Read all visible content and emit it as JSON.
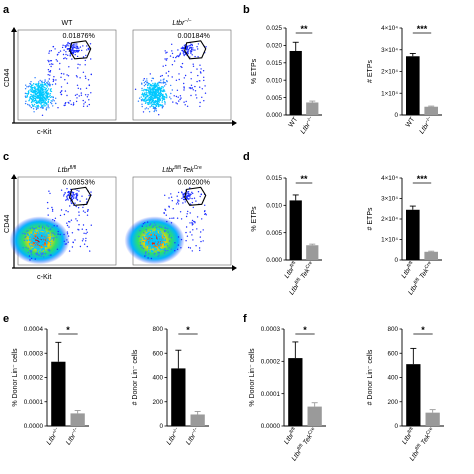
{
  "panel_letters": {
    "a": "a",
    "b": "b",
    "c": "c",
    "d": "d",
    "e": "e",
    "f": "f"
  },
  "flow_panels": [
    {
      "panel": "a",
      "x_axis_label": "c-Kit",
      "y_axis_label": "CD44",
      "plots": [
        {
          "title_main": "WT",
          "title_sup": "",
          "title_main2": "",
          "title_sup2": "",
          "gate_value": "0.01876%",
          "density": "sparse"
        },
        {
          "title_main": "Ltbr",
          "title_sup": "−/−",
          "title_main2": "",
          "title_sup2": "",
          "gate_value": "0.00184%",
          "density": "sparse"
        }
      ]
    },
    {
      "panel": "c",
      "x_axis_label": "c-Kit",
      "y_axis_label": "CD44",
      "plots": [
        {
          "title_main": "Ltbr",
          "title_sup": "fl/fl",
          "title_main2": "",
          "title_sup2": "",
          "gate_value": "0.00853%",
          "density": "dense"
        },
        {
          "title_main": "Ltbr",
          "title_sup": "fl/fl",
          "title_main2": " Tek",
          "title_sup2": "Cre",
          "gate_value": "0.00200%",
          "density": "dense"
        }
      ]
    }
  ],
  "chart_data": [
    {
      "panel": "b",
      "type": "bar",
      "ylabel": "% ETPs",
      "ylim": [
        0,
        0.025
      ],
      "yticks": [
        "0.000",
        "0.005",
        "0.010",
        "0.015",
        "0.020",
        "0.025"
      ],
      "categories": [
        {
          "main": "WT",
          "sup": ""
        },
        {
          "main": "Ltbr",
          "sup": "−/−"
        }
      ],
      "values": [
        0.0184,
        0.0036
      ],
      "errors": [
        0.0025,
        0.0004
      ],
      "bar_colors": [
        "#000000",
        "#9a9a9a"
      ],
      "significance": "**"
    },
    {
      "panel": "b",
      "type": "bar",
      "ylabel": "# ETPs",
      "ylim": [
        0,
        40000
      ],
      "yticks": [
        "0",
        "1×10⁴",
        "2×10⁴",
        "3×10⁴",
        "4×10⁴"
      ],
      "categories": [
        {
          "main": "WT",
          "sup": ""
        },
        {
          "main": "Ltbr",
          "sup": "−/−"
        }
      ],
      "values": [
        27000,
        3800
      ],
      "errors": [
        1300,
        300
      ],
      "bar_colors": [
        "#000000",
        "#9a9a9a"
      ],
      "significance": "***"
    },
    {
      "panel": "d",
      "type": "bar",
      "ylabel": "% ETPs",
      "ylim": [
        0,
        0.015
      ],
      "yticks": [
        "0.000",
        "0.005",
        "0.010",
        "0.015"
      ],
      "categories": [
        {
          "main": "Ltbr",
          "sup": "fl/fl"
        },
        {
          "main": "Ltbr",
          "sup": "fl/fl",
          "main2": " Tek",
          "sup2": "Cre"
        }
      ],
      "values": [
        0.0109,
        0.0027
      ],
      "errors": [
        0.001,
        0.0002
      ],
      "bar_colors": [
        "#000000",
        "#9a9a9a"
      ],
      "significance": "**"
    },
    {
      "panel": "d",
      "type": "bar",
      "ylabel": "# ETPs",
      "ylim": [
        0,
        40000
      ],
      "yticks": [
        "0",
        "1×10⁴",
        "2×10⁴",
        "3×10⁴",
        "4×10⁴"
      ],
      "categories": [
        {
          "main": "Ltbr",
          "sup": "fl/fl"
        },
        {
          "main": "Ltbr",
          "sup": "fl/fl",
          "main2": " Tek",
          "sup2": "Cre"
        }
      ],
      "values": [
        24500,
        4000
      ],
      "errors": [
        1800,
        300
      ],
      "bar_colors": [
        "#000000",
        "#9a9a9a"
      ],
      "significance": "***"
    },
    {
      "panel": "e",
      "type": "bar",
      "ylabel": "% Donor Lin⁻ cells",
      "ylim": [
        0,
        0.0004
      ],
      "yticks": [
        "0.0000",
        "0.0001",
        "0.0002",
        "0.0003",
        "0.0004"
      ],
      "categories": [
        {
          "main": "Ltbr",
          "sup": "+/−"
        },
        {
          "main": "Ltbr",
          "sup": "−/−"
        }
      ],
      "values": [
        0.000265,
        5.2e-05
      ],
      "errors": [
        8e-05,
        1.2e-05
      ],
      "bar_colors": [
        "#000000",
        "#9a9a9a"
      ],
      "significance": "*"
    },
    {
      "panel": "e",
      "type": "bar",
      "ylabel": "# Donor Lin⁻ cells",
      "ylim": [
        0,
        800
      ],
      "yticks": [
        "0",
        "200",
        "400",
        "600",
        "800"
      ],
      "categories": [
        {
          "main": "Ltbr",
          "sup": "+/−"
        },
        {
          "main": "Ltbr",
          "sup": "−/−"
        }
      ],
      "values": [
        475,
        95
      ],
      "errors": [
        150,
        25
      ],
      "bar_colors": [
        "#000000",
        "#9a9a9a"
      ],
      "significance": "*"
    },
    {
      "panel": "f",
      "type": "bar",
      "ylabel": "% Donor Lin⁻ cells",
      "ylim": [
        0,
        0.0003
      ],
      "yticks": [
        "0.0000",
        "0.0001",
        "0.0002",
        "0.0003"
      ],
      "categories": [
        {
          "main": "Ltbr",
          "sup": "fl/fl"
        },
        {
          "main": "Ltbr",
          "sup": "fl/fl",
          "main2": " Tek",
          "sup2": "Cre"
        }
      ],
      "values": [
        0.00021,
        6e-05
      ],
      "errors": [
        5e-05,
        1.2e-05
      ],
      "bar_colors": [
        "#000000",
        "#9a9a9a"
      ],
      "significance": "*"
    },
    {
      "panel": "f",
      "type": "bar",
      "ylabel": "# Donor Lin⁻ cells",
      "ylim": [
        0,
        800
      ],
      "yticks": [
        "0",
        "200",
        "400",
        "600",
        "800"
      ],
      "categories": [
        {
          "main": "Ltbr",
          "sup": "fl/fl"
        },
        {
          "main": "Ltbr",
          "sup": "fl/fl",
          "main2": " Tek",
          "sup2": "Cre"
        }
      ],
      "values": [
        510,
        110
      ],
      "errors": [
        130,
        25
      ],
      "bar_colors": [
        "#000000",
        "#9a9a9a"
      ],
      "significance": "*"
    }
  ]
}
